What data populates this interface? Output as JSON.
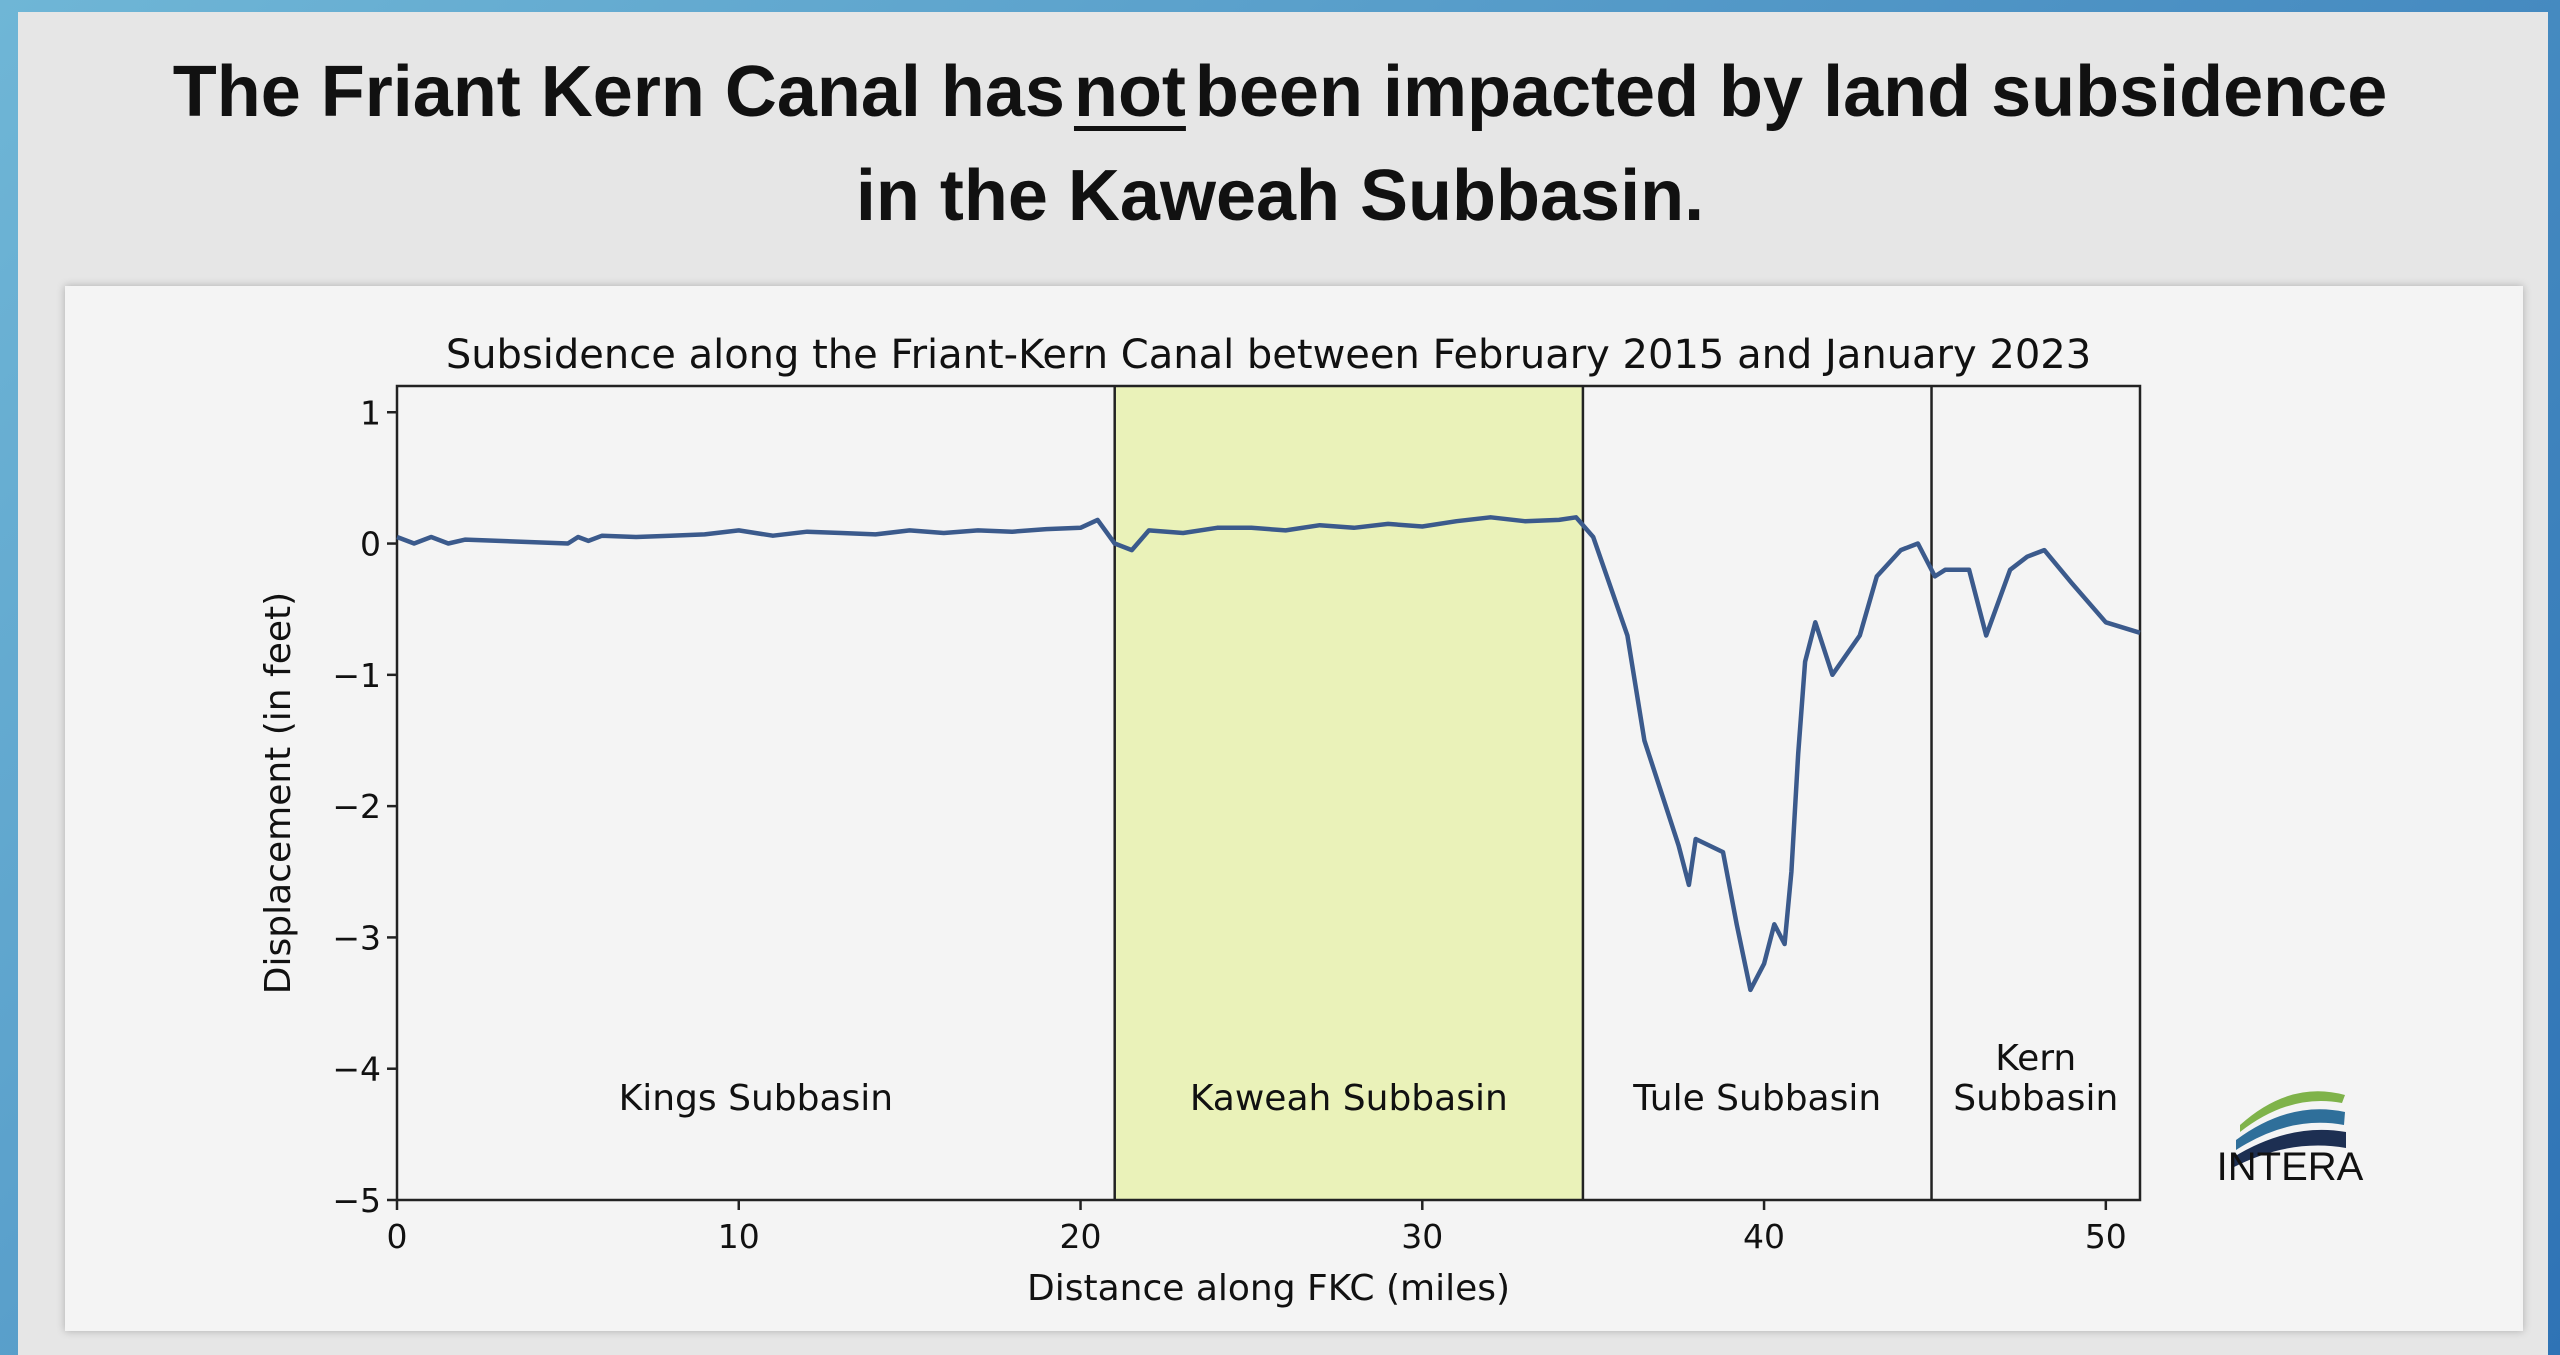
{
  "slide_title": [
    "The Friant Kern Canal has",
    "not",
    "been impacted by land subsidence",
    "in the Kaweah Subbasin."
  ],
  "logo": "INTERA",
  "chart_data": {
    "type": "line",
    "title": "Subsidence along the Friant-Kern Canal between February 2015 and January 2023",
    "x_label": "Distance along FKC (miles)",
    "y_label": "Displacement (in feet)",
    "x": [
      0,
      0.5,
      1,
      1.5,
      2,
      5,
      5.3,
      5.6,
      6,
      7,
      8,
      9,
      10,
      11,
      12,
      13,
      14,
      15,
      16,
      17,
      18,
      19,
      20,
      20.5,
      21,
      21.5,
      22,
      23,
      24,
      25,
      26,
      27,
      28,
      29,
      30,
      31,
      32,
      33,
      34,
      34.5,
      35,
      36,
      36.5,
      37,
      37.5,
      37.8,
      38,
      38.8,
      39.2,
      39.6,
      40,
      40.3,
      40.6,
      40.8,
      41,
      41.2,
      41.5,
      42,
      42.8,
      43.3,
      44,
      44.5,
      45,
      45.3,
      46,
      46.5,
      47.2,
      47.7,
      48.2,
      49,
      50,
      51
    ],
    "series": [
      {
        "color": "#3b5a8c",
        "values": [
          0.05,
          0.0,
          0.05,
          0.0,
          0.03,
          0.0,
          0.05,
          0.02,
          0.06,
          0.05,
          0.06,
          0.07,
          0.1,
          0.06,
          0.09,
          0.08,
          0.07,
          0.1,
          0.08,
          0.1,
          0.09,
          0.11,
          0.12,
          0.18,
          0.0,
          -0.05,
          0.1,
          0.08,
          0.12,
          0.12,
          0.1,
          0.14,
          0.12,
          0.15,
          0.13,
          0.17,
          0.2,
          0.17,
          0.18,
          0.2,
          0.05,
          -0.7,
          -1.5,
          -1.9,
          -2.3,
          -2.6,
          -2.25,
          -2.35,
          -2.9,
          -3.4,
          -3.2,
          -2.9,
          -3.05,
          -2.5,
          -1.6,
          -0.9,
          -0.6,
          -1.0,
          -0.7,
          -0.25,
          -0.05,
          0.0,
          -0.25,
          -0.2,
          -0.2,
          -0.7,
          -0.2,
          -0.1,
          -0.05,
          -0.3,
          -0.6,
          -0.68
        ]
      }
    ],
    "regions": [
      {
        "label": [
          "Kings Subbasin"
        ],
        "start": 0,
        "end": 21
      },
      {
        "label": [
          "Kaweah Subbasin"
        ],
        "start": 21,
        "end": 34.7,
        "color": "#eaf2b9"
      },
      {
        "label": [
          "Tule Subbasin"
        ],
        "start": 34.7,
        "end": 44.9
      },
      {
        "label": [
          "Kern",
          "Subbasin"
        ],
        "start": 44.9,
        "end": 51
      }
    ],
    "xlim": [
      0,
      51
    ],
    "ylim": [
      -5,
      1.2
    ],
    "xticks": [
      0,
      10,
      20,
      30,
      40,
      50
    ],
    "yticks": [
      {
        "value": -5,
        "label": "−5"
      },
      {
        "value": -4,
        "label": "−4"
      },
      {
        "value": -3,
        "label": "−3"
      },
      {
        "value": -2,
        "label": "−2"
      },
      {
        "value": -1,
        "label": "−1"
      },
      0,
      1
    ]
  }
}
